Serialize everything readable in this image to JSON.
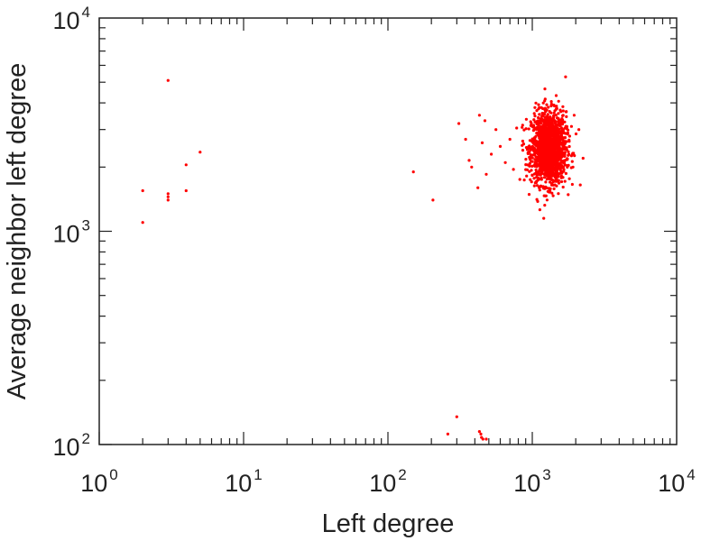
{
  "chart_data": {
    "type": "scatter",
    "title": "",
    "xlabel": "Left degree",
    "ylabel": "Average neighbor left degree",
    "x_scale": "log",
    "y_scale": "log",
    "xlim": [
      1,
      10000
    ],
    "ylim": [
      100,
      10000
    ],
    "x_ticks": [
      {
        "base": "10",
        "exp": "0"
      },
      {
        "base": "10",
        "exp": "1"
      },
      {
        "base": "10",
        "exp": "2"
      },
      {
        "base": "10",
        "exp": "3"
      },
      {
        "base": "10",
        "exp": "4"
      }
    ],
    "y_ticks": [
      {
        "base": "10",
        "exp": "2"
      },
      {
        "base": "10",
        "exp": "3"
      },
      {
        "base": "10",
        "exp": "4"
      }
    ],
    "grid": false,
    "legend": "none",
    "marker_color": "#ff0000",
    "series": [
      {
        "points": [
          [
            2,
            1550
          ],
          [
            2,
            1100
          ],
          [
            3,
            5100
          ],
          [
            3,
            1500
          ],
          [
            3,
            1400
          ],
          [
            3,
            1450
          ],
          [
            4,
            2050
          ],
          [
            4,
            1550
          ],
          [
            5,
            2350
          ],
          [
            150,
            1900
          ],
          [
            205,
            1400
          ],
          [
            260,
            112
          ],
          [
            300,
            135
          ],
          [
            310,
            3200
          ],
          [
            345,
            2700
          ],
          [
            365,
            2150
          ],
          [
            380,
            2000
          ],
          [
            420,
            1600
          ],
          [
            430,
            3500
          ],
          [
            450,
            2600
          ],
          [
            470,
            3300
          ],
          [
            480,
            1850
          ],
          [
            430,
            115
          ],
          [
            440,
            112
          ],
          [
            445,
            108
          ],
          [
            455,
            106
          ],
          [
            480,
            106
          ],
          [
            520,
            2300
          ],
          [
            560,
            3000
          ],
          [
            600,
            2500
          ],
          [
            650,
            2100
          ],
          [
            700,
            2700
          ],
          [
            740,
            1950
          ],
          [
            780,
            3050
          ],
          [
            820,
            1750
          ],
          [
            860,
            2400
          ],
          [
            1700,
            5300
          ],
          [
            2150,
            1650
          ],
          [
            2250,
            2200
          ],
          [
            2100,
            3000
          ],
          [
            1950,
            3500
          ]
        ],
        "cluster": {
          "n": 1600,
          "x_geo_center": 1300,
          "x_log10_sd": 0.06,
          "y_geo_center": 2450,
          "y_log10_sd": 0.085,
          "x_range": [
            850,
            2300
          ],
          "y_range": [
            1150,
            5000
          ]
        }
      }
    ]
  }
}
